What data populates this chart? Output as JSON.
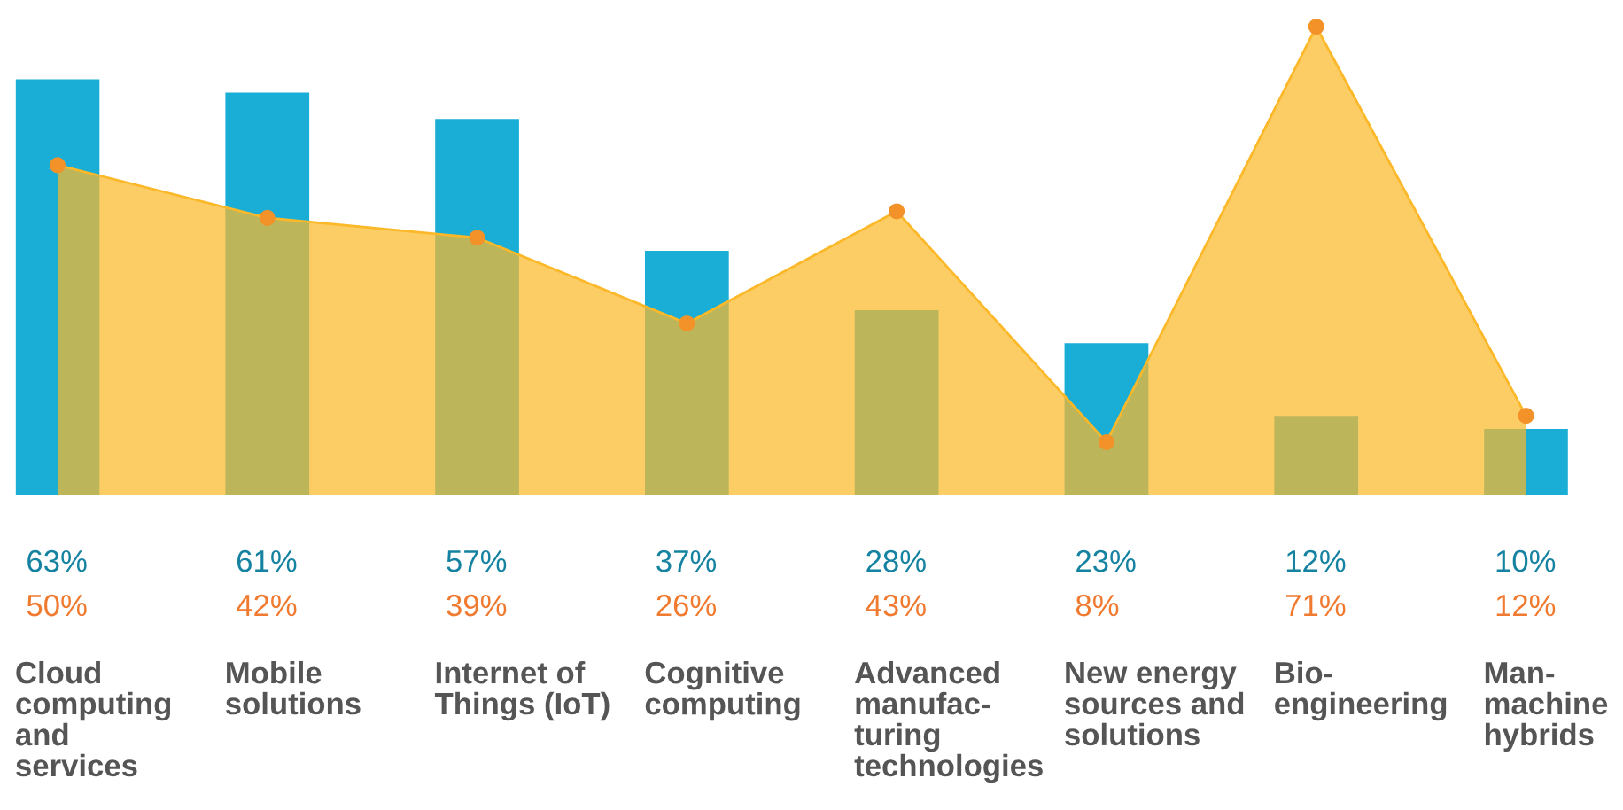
{
  "chart_data": {
    "type": "bar",
    "categories": [
      "Cloud\ncomputing\nand\nservices",
      "Mobile\nsolutions",
      "Internet of\nThings (IoT)",
      "Cognitive\ncomputing",
      "Advanced\nmanufac-\nturing\ntechnologies",
      "New energy\nsources and\nsolutions",
      "Bio-\nengineering",
      "Man-\nmachine\nhybrids"
    ],
    "series": [
      {
        "color": "#1aaed6",
        "values": [
          63,
          61,
          57,
          37,
          28,
          23,
          12,
          10
        ],
        "value_labels": [
          "63%",
          "61%",
          "57%",
          "37%",
          "28%",
          "23%",
          "12%",
          "10%"
        ]
      },
      {
        "type": "area",
        "color": "#fbb829",
        "marker": "circle",
        "values": [
          50,
          42,
          39,
          26,
          43,
          8,
          71,
          12
        ],
        "value_labels": [
          "50%",
          "42%",
          "39%",
          "26%",
          "43%",
          "8%",
          "71%",
          "12%"
        ]
      }
    ],
    "grid": false,
    "legend": false
  }
}
